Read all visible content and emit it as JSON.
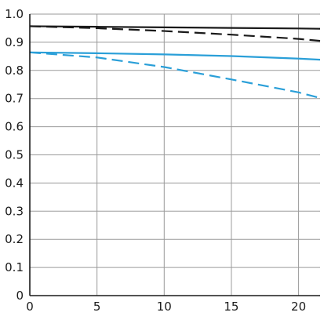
{
  "chart_data": {
    "type": "line",
    "title": "",
    "xlabel": "",
    "ylabel": "",
    "xlim": [
      0,
      21.6
    ],
    "ylim": [
      0,
      1.0
    ],
    "x_ticks": [
      0,
      5,
      10,
      15,
      20
    ],
    "x_tick_labels": [
      "0",
      "5",
      "10",
      "15",
      "20"
    ],
    "y_ticks": [
      0,
      0.1,
      0.2,
      0.3,
      0.4,
      0.5,
      0.6,
      0.7,
      0.8,
      0.9,
      1.0
    ],
    "y_tick_labels": [
      "0",
      "0.1",
      "0.2",
      "0.3",
      "0.4",
      "0.5",
      "0.6",
      "0.7",
      "0.8",
      "0.9",
      "1.0"
    ],
    "grid": true,
    "legend": "none",
    "series": [
      {
        "color": "#1a1a1a",
        "style": "solid",
        "x": [
          0,
          5,
          10,
          15,
          20,
          21.6
        ],
        "values": [
          0.957,
          0.955,
          0.953,
          0.951,
          0.949,
          0.948
        ]
      },
      {
        "color": "#1a1a1a",
        "style": "dashed",
        "x": [
          0,
          5,
          10,
          15,
          20,
          21.6
        ],
        "values": [
          0.957,
          0.95,
          0.94,
          0.927,
          0.912,
          0.905
        ]
      },
      {
        "color": "#2a9fd8",
        "style": "solid",
        "x": [
          0,
          5,
          10,
          15,
          20,
          21.6
        ],
        "values": [
          0.864,
          0.861,
          0.857,
          0.851,
          0.842,
          0.838
        ]
      },
      {
        "color": "#2a9fd8",
        "style": "dashed",
        "x": [
          0,
          5,
          10,
          15,
          20,
          21.6
        ],
        "values": [
          0.864,
          0.846,
          0.812,
          0.768,
          0.722,
          0.702
        ]
      }
    ]
  }
}
